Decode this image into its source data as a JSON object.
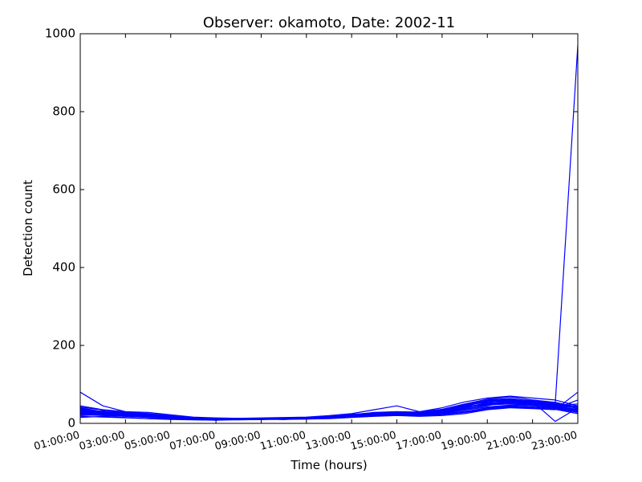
{
  "chart_data": {
    "type": "line",
    "title": "Observer: okamoto, Date: 2002-11",
    "xlabel": "Time (hours)",
    "ylabel": "Detection count",
    "x_hours": [
      1,
      2,
      3,
      4,
      5,
      6,
      7,
      8,
      9,
      10,
      11,
      12,
      13,
      14,
      15,
      16,
      17,
      18,
      19,
      20,
      21,
      22,
      23
    ],
    "xticks": [
      {
        "hour": 1,
        "label": "01:00:00"
      },
      {
        "hour": 3,
        "label": "03:00:00"
      },
      {
        "hour": 5,
        "label": "05:00:00"
      },
      {
        "hour": 7,
        "label": "07:00:00"
      },
      {
        "hour": 9,
        "label": "09:00:00"
      },
      {
        "hour": 11,
        "label": "11:00:00"
      },
      {
        "hour": 13,
        "label": "13:00:00"
      },
      {
        "hour": 15,
        "label": "15:00:00"
      },
      {
        "hour": 17,
        "label": "17:00:00"
      },
      {
        "hour": 19,
        "label": "19:00:00"
      },
      {
        "hour": 21,
        "label": "21:00:00"
      },
      {
        "hour": 23,
        "label": "23:00:00"
      }
    ],
    "yticks": [
      0,
      200,
      400,
      600,
      800,
      1000
    ],
    "xlim": [
      1,
      23
    ],
    "ylim": [
      0,
      1000
    ],
    "grid": false,
    "line_color": "#0000ff",
    "series": [
      {
        "values": [
          80,
          45,
          30,
          25,
          20,
          15,
          12,
          10,
          12,
          12,
          15,
          18,
          22,
          28,
          30,
          28,
          35,
          45,
          60,
          55,
          50,
          45,
          40
        ]
      },
      {
        "values": [
          40,
          30,
          28,
          22,
          18,
          14,
          12,
          12,
          10,
          14,
          14,
          16,
          20,
          24,
          25,
          25,
          30,
          40,
          50,
          50,
          45,
          40,
          35
        ]
      },
      {
        "values": [
          35,
          28,
          25,
          20,
          17,
          13,
          11,
          10,
          10,
          12,
          13,
          15,
          20,
          22,
          24,
          22,
          28,
          38,
          55,
          60,
          55,
          50,
          42
        ]
      },
      {
        "values": [
          30,
          25,
          22,
          18,
          15,
          12,
          10,
          10,
          12,
          10,
          12,
          15,
          18,
          22,
          26,
          28,
          32,
          42,
          48,
          52,
          48,
          44,
          30
        ]
      },
      {
        "values": [
          25,
          32,
          20,
          25,
          20,
          12,
          11,
          13,
          12,
          10,
          14,
          14,
          19,
          21,
          23,
          26,
          30,
          36,
          45,
          58,
          52,
          45,
          50
        ]
      },
      {
        "values": [
          20,
          22,
          18,
          15,
          12,
          10,
          9,
          11,
          10,
          13,
          12,
          13,
          17,
          19,
          21,
          20,
          25,
          30,
          40,
          45,
          42,
          38,
          60
        ]
      },
      {
        "values": [
          15,
          18,
          15,
          12,
          10,
          9,
          8,
          10,
          11,
          12,
          11,
          12,
          15,
          18,
          20,
          18,
          20,
          25,
          35,
          40,
          38,
          35,
          80
        ]
      },
      {
        "values": [
          45,
          35,
          30,
          28,
          22,
          16,
          14,
          13,
          14,
          15,
          16,
          20,
          25,
          35,
          45,
          30,
          40,
          55,
          65,
          70,
          65,
          60,
          45
        ]
      },
      {
        "values": [
          38,
          30,
          24,
          20,
          16,
          15,
          13,
          12,
          12,
          13,
          15,
          17,
          21,
          25,
          28,
          27,
          33,
          48,
          58,
          62,
          58,
          52,
          38
        ]
      },
      {
        "values": [
          28,
          24,
          20,
          17,
          14,
          13,
          11,
          11,
          11,
          11,
          13,
          15,
          19,
          23,
          25,
          24,
          29,
          39,
          52,
          55,
          50,
          46,
          33
        ]
      },
      {
        "values": [
          32,
          27,
          23,
          19,
          15,
          14,
          12,
          11,
          12,
          12,
          14,
          16,
          20,
          25,
          27,
          26,
          31,
          43,
          50,
          54,
          49,
          44,
          36
        ]
      },
      {
        "values": [
          22,
          20,
          18,
          16,
          13,
          11,
          10,
          10,
          10,
          11,
          12,
          14,
          18,
          21,
          23,
          22,
          26,
          34,
          42,
          47,
          45,
          40,
          28
        ]
      },
      {
        "values": [
          18,
          16,
          14,
          12,
          11,
          10,
          9,
          9,
          10,
          10,
          11,
          13,
          16,
          19,
          21,
          20,
          22,
          28,
          36,
          42,
          40,
          36,
          25
        ]
      },
      {
        "values": [
          42,
          34,
          27,
          23,
          19,
          15,
          13,
          12,
          13,
          14,
          15,
          18,
          23,
          27,
          30,
          29,
          36,
          50,
          62,
          68,
          60,
          54,
          42
        ]
      },
      {
        "values": [
          33,
          28,
          24,
          21,
          17,
          14,
          12,
          11,
          11,
          12,
          14,
          16,
          21,
          24,
          26,
          25,
          30,
          44,
          56,
          58,
          54,
          48,
          39
        ]
      },
      {
        "values": [
          26,
          23,
          21,
          18,
          15,
          13,
          11,
          10,
          10,
          12,
          13,
          15,
          19,
          22,
          24,
          23,
          27,
          37,
          47,
          50,
          46,
          42,
          31
        ]
      },
      {
        "values": [
          36,
          29,
          25,
          22,
          18,
          14,
          12,
          11,
          12,
          13,
          14,
          17,
          22,
          26,
          29,
          27,
          34,
          47,
          60,
          64,
          57,
          50,
          44
        ]
      },
      {
        "values": [
          24,
          21,
          19,
          17,
          14,
          12,
          10,
          10,
          11,
          11,
          12,
          14,
          18,
          20,
          22,
          21,
          24,
          31,
          38,
          44,
          41,
          37,
          29
        ]
      },
      {
        "values": [
          30,
          26,
          22,
          19,
          16,
          13,
          11,
          10,
          11,
          12,
          13,
          15,
          19,
          23,
          25,
          24,
          28,
          40,
          53,
          56,
          52,
          47,
          970
        ]
      },
      {
        "values": [
          34,
          29,
          25,
          21,
          17,
          14,
          12,
          11,
          11,
          12,
          14,
          16,
          20,
          24,
          27,
          26,
          32,
          45,
          57,
          60,
          56,
          5,
          40
        ]
      }
    ]
  }
}
